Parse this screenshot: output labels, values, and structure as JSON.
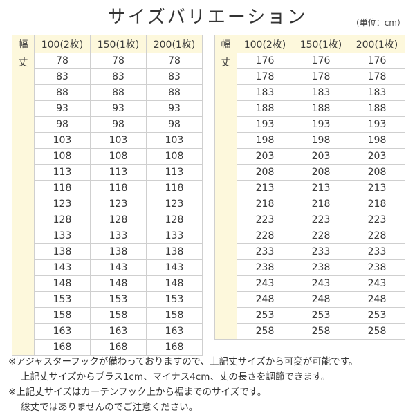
{
  "title": "サイズバリエーション",
  "unit": "（単位：cm）",
  "tables": [
    {
      "corner": "幅",
      "row_label": "丈",
      "headers": [
        "100(2枚)",
        "150(1枚)",
        "200(1枚)"
      ],
      "lengths": [
        "78",
        "83",
        "88",
        "93",
        "98",
        "103",
        "108",
        "113",
        "118",
        "123",
        "128",
        "133",
        "138",
        "143",
        "148",
        "153",
        "158",
        "163",
        "168"
      ]
    },
    {
      "corner": "幅",
      "row_label": "丈",
      "headers": [
        "100(2枚)",
        "150(1枚)",
        "200(1枚)"
      ],
      "lengths": [
        "176",
        "178",
        "183",
        "188",
        "193",
        "198",
        "203",
        "208",
        "213",
        "218",
        "223",
        "228",
        "233",
        "238",
        "243",
        "248",
        "253",
        "258"
      ]
    }
  ],
  "notes": [
    {
      "line1": "※アジャスターフックが備わっておりますので、上記丈サイズから可変が可能です。",
      "line2": "上記丈サイズからプラス1cm、マイナス4cm、丈の長さを調節できます。"
    },
    {
      "line1": "※上記丈サイズはカーテンフック上から裾までのサイズです。",
      "line2": "総丈ではありませんのでご注意ください。"
    }
  ],
  "colors": {
    "header_bg": "#fdf8dc",
    "border": "#cfcfcf",
    "text": "#3a3a3a"
  }
}
